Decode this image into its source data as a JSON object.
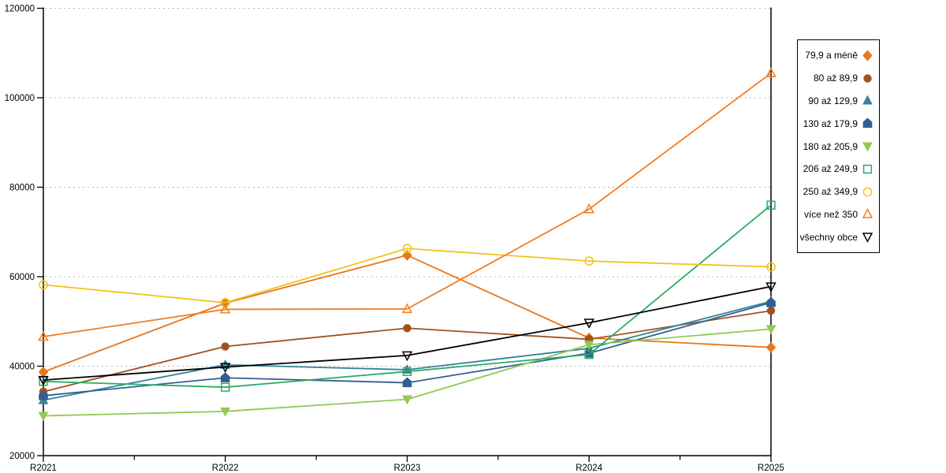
{
  "chart_data": {
    "type": "line",
    "title": "",
    "xlabel": "",
    "ylabel": "",
    "categories": [
      "R2021",
      "R2022",
      "R2023",
      "R2024",
      "R2025"
    ],
    "y_axis": {
      "min": 20000,
      "max": 120000,
      "step": 20000,
      "tick_labels": [
        "20000",
        "40000",
        "60000",
        "80000",
        "100000",
        "120000"
      ]
    },
    "grid": "horizontal-dashed",
    "legend_position": "right-outside",
    "series": [
      {
        "name": "79,9 a méně",
        "color": "#E8761D",
        "marker": "diamond",
        "style": "filled",
        "values": [
          38700,
          54100,
          64800,
          46300,
          44200
        ]
      },
      {
        "name": "80 až 89,9",
        "color": "#A0521E",
        "marker": "circle",
        "style": "filled",
        "values": [
          34300,
          44400,
          48500,
          46000,
          52400
        ]
      },
      {
        "name": "90 až 129,9",
        "color": "#31849B",
        "marker": "triangle-up",
        "style": "filled",
        "values": [
          32400,
          40300,
          39200,
          44000,
          54500
        ]
      },
      {
        "name": "130 až 179,9",
        "color": "#325F93",
        "marker": "pentagon",
        "style": "filled",
        "values": [
          33400,
          37400,
          36300,
          42900,
          54200
        ]
      },
      {
        "name": "180 až 205,9",
        "color": "#92C853",
        "marker": "triangle-down",
        "style": "filled",
        "values": [
          28900,
          29900,
          32600,
          44800,
          48300
        ]
      },
      {
        "name": "206 až 249,9",
        "color": "#2BAB67",
        "marker": "square",
        "style": "hollow",
        "values": [
          36600,
          35300,
          38800,
          42600,
          76000
        ]
      },
      {
        "name": "250 až 349,9",
        "color": "#F2C318",
        "marker": "circle",
        "style": "hollow",
        "values": [
          58200,
          54200,
          66300,
          63500,
          62200
        ]
      },
      {
        "name": "více než 350",
        "color": "#F07E26",
        "marker": "triangle-up",
        "style": "hollow",
        "values": [
          46600,
          52700,
          52800,
          75100,
          105500
        ]
      },
      {
        "name": "všechny obce",
        "color": "#000000",
        "marker": "triangle-down",
        "style": "hollow",
        "values": [
          36900,
          39800,
          42400,
          49700,
          57800
        ]
      }
    ],
    "colors": {
      "axis": "#000000",
      "gridline": "#b5b5b5",
      "background": "#ffffff",
      "text": "#000000"
    }
  }
}
